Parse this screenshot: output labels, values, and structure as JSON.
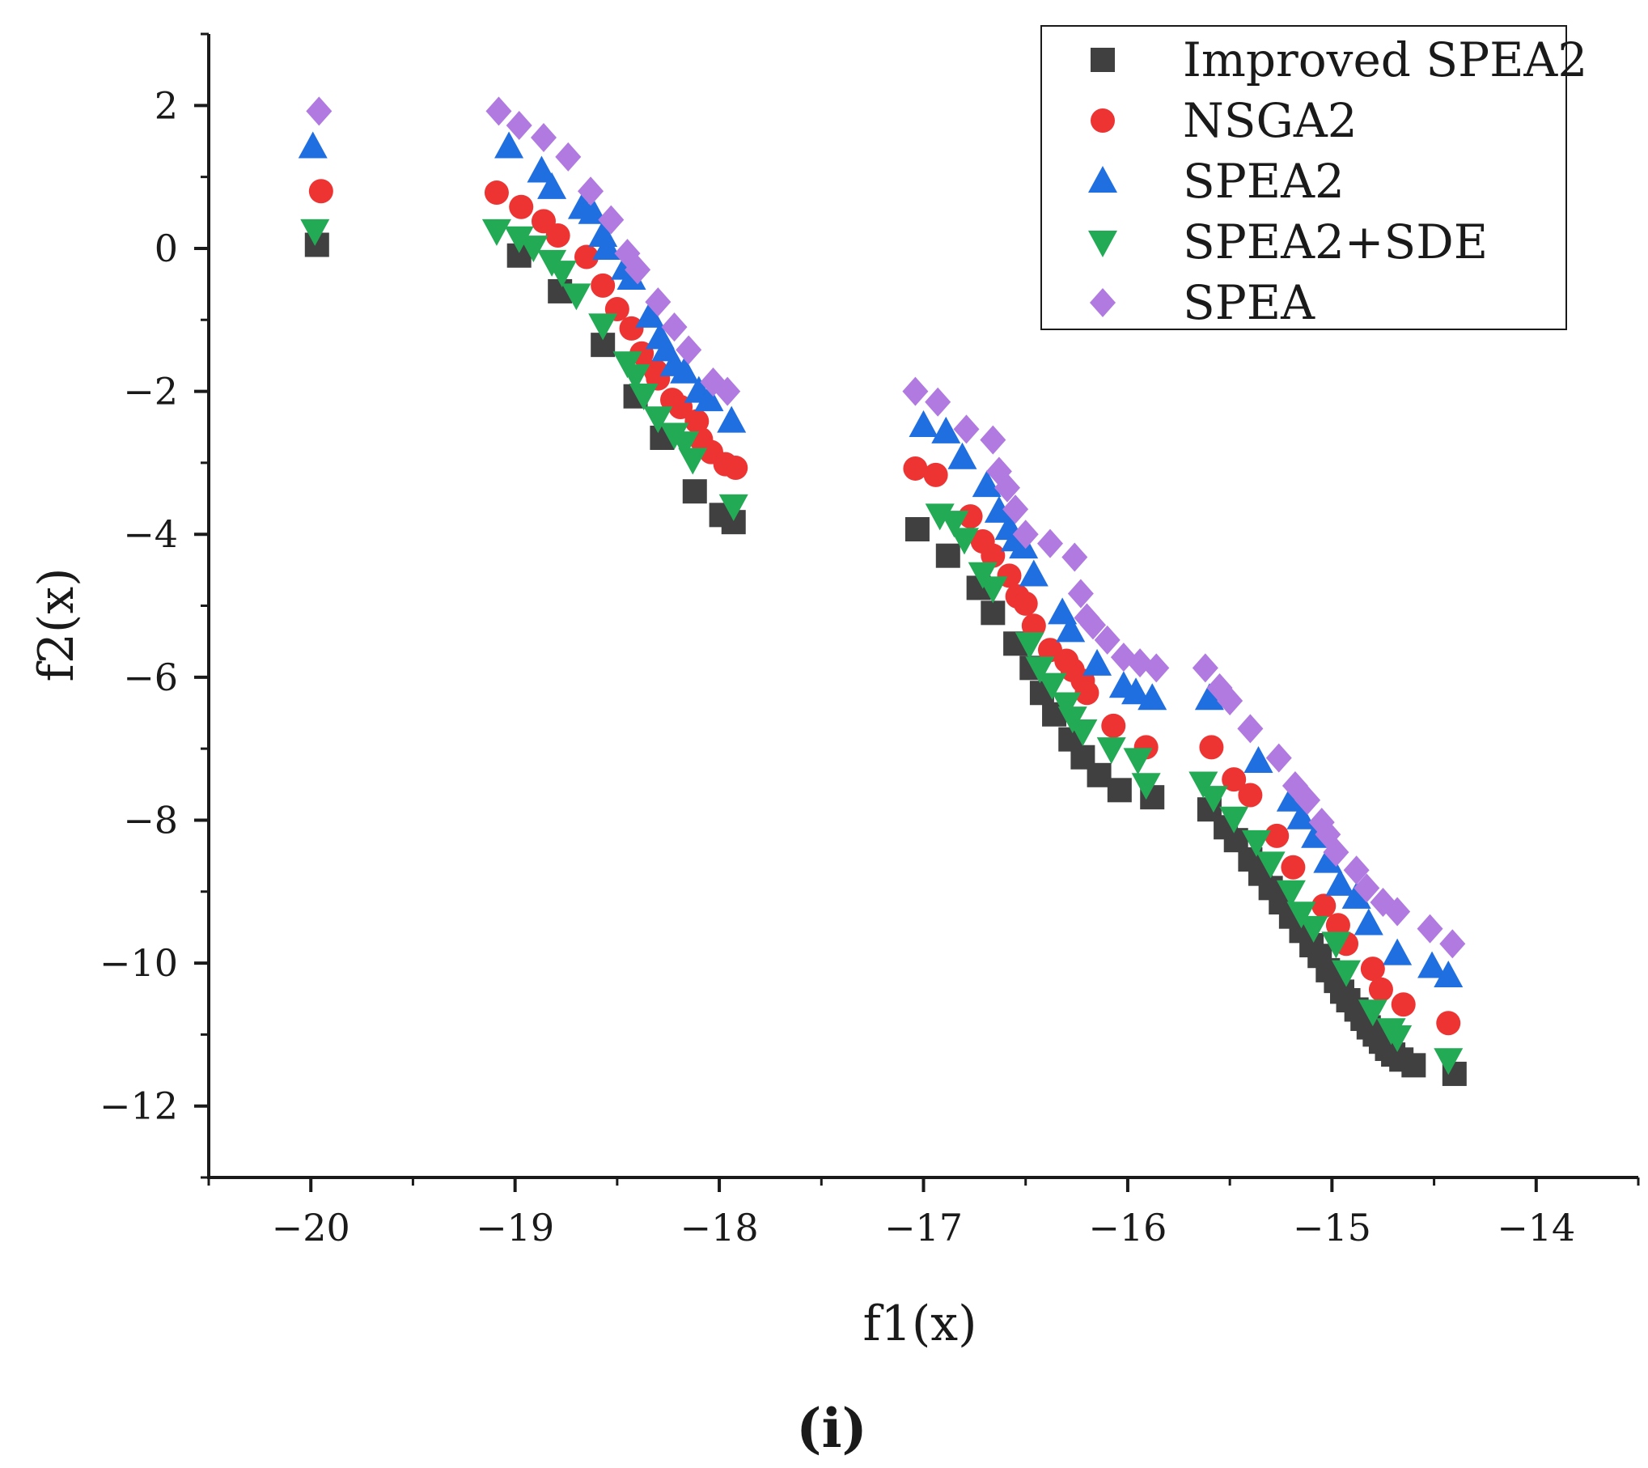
{
  "chart_data": {
    "type": "scatter",
    "title": "",
    "caption": "(i)",
    "xlabel": "f1(x)",
    "ylabel": "f2(x)",
    "xlim": [
      -20.5,
      -13.5
    ],
    "ylim": [
      -13,
      3
    ],
    "x_ticks": [
      -20,
      -19,
      -18,
      -17,
      -16,
      -15,
      -14
    ],
    "x_tick_labels": [
      "−20",
      "−19",
      "−18",
      "−17",
      "−16",
      "−15",
      "−14"
    ],
    "y_ticks": [
      2,
      0,
      -2,
      -4,
      -6,
      -8,
      -10,
      -12
    ],
    "y_tick_labels": [
      "2",
      "0",
      "−2",
      "−4",
      "−6",
      "−8",
      "−10",
      "−12"
    ],
    "grid": false,
    "legend_position": "top-right",
    "series": [
      {
        "name": "Improved SPEA2",
        "marker": "square",
        "color": "#404040",
        "points": [
          [
            -19.97,
            0.05
          ],
          [
            -18.98,
            -0.1
          ],
          [
            -18.78,
            -0.6
          ],
          [
            -18.57,
            -1.35
          ],
          [
            -18.41,
            -2.07
          ],
          [
            -18.28,
            -2.65
          ],
          [
            -18.12,
            -3.4
          ],
          [
            -17.99,
            -3.73
          ],
          [
            -17.93,
            -3.83
          ],
          [
            -17.03,
            -3.93
          ],
          [
            -16.88,
            -4.3
          ],
          [
            -16.73,
            -4.75
          ],
          [
            -16.66,
            -5.1
          ],
          [
            -16.55,
            -5.53
          ],
          [
            -16.47,
            -5.87
          ],
          [
            -16.42,
            -6.22
          ],
          [
            -16.36,
            -6.52
          ],
          [
            -16.28,
            -6.87
          ],
          [
            -16.22,
            -7.12
          ],
          [
            -16.14,
            -7.37
          ],
          [
            -16.04,
            -7.58
          ],
          [
            -15.88,
            -7.68
          ],
          [
            -15.6,
            -7.85
          ],
          [
            -15.52,
            -8.1
          ],
          [
            -15.47,
            -8.28
          ],
          [
            -15.4,
            -8.55
          ],
          [
            -15.35,
            -8.75
          ],
          [
            -15.3,
            -8.95
          ],
          [
            -15.25,
            -9.15
          ],
          [
            -15.2,
            -9.35
          ],
          [
            -15.15,
            -9.55
          ],
          [
            -15.1,
            -9.75
          ],
          [
            -15.06,
            -9.9
          ],
          [
            -15.02,
            -10.1
          ],
          [
            -14.98,
            -10.25
          ],
          [
            -14.95,
            -10.4
          ],
          [
            -14.92,
            -10.52
          ],
          [
            -14.88,
            -10.65
          ],
          [
            -14.85,
            -10.78
          ],
          [
            -14.82,
            -10.9
          ],
          [
            -14.79,
            -11.0
          ],
          [
            -14.76,
            -11.1
          ],
          [
            -14.73,
            -11.2
          ],
          [
            -14.7,
            -11.28
          ],
          [
            -14.66,
            -11.35
          ],
          [
            -14.6,
            -11.43
          ],
          [
            -14.4,
            -11.55
          ]
        ]
      },
      {
        "name": "NSGA2",
        "marker": "circle",
        "color": "#ee3333",
        "points": [
          [
            -19.95,
            0.8
          ],
          [
            -19.09,
            0.78
          ],
          [
            -18.97,
            0.58
          ],
          [
            -18.86,
            0.38
          ],
          [
            -18.79,
            0.18
          ],
          [
            -18.65,
            -0.12
          ],
          [
            -18.57,
            -0.52
          ],
          [
            -18.5,
            -0.85
          ],
          [
            -18.43,
            -1.12
          ],
          [
            -18.38,
            -1.47
          ],
          [
            -18.31,
            -1.72
          ],
          [
            -18.3,
            -1.82
          ],
          [
            -18.23,
            -2.12
          ],
          [
            -18.19,
            -2.22
          ],
          [
            -18.11,
            -2.42
          ],
          [
            -18.09,
            -2.67
          ],
          [
            -18.04,
            -2.85
          ],
          [
            -17.97,
            -3.02
          ],
          [
            -17.92,
            -3.07
          ],
          [
            -17.04,
            -3.08
          ],
          [
            -16.94,
            -3.17
          ],
          [
            -16.77,
            -3.75
          ],
          [
            -16.71,
            -4.1
          ],
          [
            -16.66,
            -4.3
          ],
          [
            -16.58,
            -4.58
          ],
          [
            -16.54,
            -4.87
          ],
          [
            -16.5,
            -4.97
          ],
          [
            -16.46,
            -5.28
          ],
          [
            -16.38,
            -5.62
          ],
          [
            -16.3,
            -5.77
          ],
          [
            -16.27,
            -5.9
          ],
          [
            -16.22,
            -6.05
          ],
          [
            -16.2,
            -6.22
          ],
          [
            -16.07,
            -6.68
          ],
          [
            -15.91,
            -6.98
          ],
          [
            -15.59,
            -6.98
          ],
          [
            -15.48,
            -7.43
          ],
          [
            -15.4,
            -7.65
          ],
          [
            -15.27,
            -8.22
          ],
          [
            -15.19,
            -8.66
          ],
          [
            -15.04,
            -9.2
          ],
          [
            -14.97,
            -9.47
          ],
          [
            -14.93,
            -9.73
          ],
          [
            -14.8,
            -10.08
          ],
          [
            -14.76,
            -10.37
          ],
          [
            -14.65,
            -10.58
          ],
          [
            -14.43,
            -10.84
          ]
        ]
      },
      {
        "name": "SPEA2",
        "marker": "triangle-up",
        "color": "#1f6fe0",
        "points": [
          [
            -19.99,
            1.42
          ],
          [
            -19.03,
            1.42
          ],
          [
            -18.87,
            1.08
          ],
          [
            -18.82,
            0.85
          ],
          [
            -18.67,
            0.57
          ],
          [
            -18.62,
            0.5
          ],
          [
            -18.57,
            0.18
          ],
          [
            -18.55,
            0.0
          ],
          [
            -18.46,
            -0.28
          ],
          [
            -18.43,
            -0.42
          ],
          [
            -18.34,
            -0.95
          ],
          [
            -18.29,
            -1.25
          ],
          [
            -18.26,
            -1.42
          ],
          [
            -18.22,
            -1.63
          ],
          [
            -18.17,
            -1.73
          ],
          [
            -18.1,
            -2.0
          ],
          [
            -18.05,
            -2.12
          ],
          [
            -17.94,
            -2.42
          ],
          [
            -17.0,
            -2.48
          ],
          [
            -16.89,
            -2.57
          ],
          [
            -16.81,
            -2.93
          ],
          [
            -16.69,
            -3.32
          ],
          [
            -16.63,
            -3.68
          ],
          [
            -16.58,
            -3.92
          ],
          [
            -16.55,
            -4.08
          ],
          [
            -16.51,
            -4.18
          ],
          [
            -16.46,
            -4.57
          ],
          [
            -16.32,
            -5.1
          ],
          [
            -16.28,
            -5.35
          ],
          [
            -16.15,
            -5.82
          ],
          [
            -16.02,
            -6.13
          ],
          [
            -15.96,
            -6.22
          ],
          [
            -15.88,
            -6.3
          ],
          [
            -15.6,
            -6.3
          ],
          [
            -15.36,
            -7.18
          ],
          [
            -15.2,
            -7.72
          ],
          [
            -15.15,
            -7.97
          ],
          [
            -15.08,
            -8.23
          ],
          [
            -15.02,
            -8.58
          ],
          [
            -14.96,
            -8.9
          ],
          [
            -14.88,
            -9.08
          ],
          [
            -14.82,
            -9.45
          ],
          [
            -14.68,
            -9.87
          ],
          [
            -14.51,
            -10.05
          ],
          [
            -14.43,
            -10.18
          ]
        ]
      },
      {
        "name": "SPEA2+SDE",
        "marker": "triangle-down",
        "color": "#22aa55",
        "points": [
          [
            -19.98,
            0.25
          ],
          [
            -19.09,
            0.25
          ],
          [
            -18.98,
            0.15
          ],
          [
            -18.91,
            0.02
          ],
          [
            -18.82,
            -0.18
          ],
          [
            -18.77,
            -0.33
          ],
          [
            -18.7,
            -0.65
          ],
          [
            -18.57,
            -1.07
          ],
          [
            -18.45,
            -1.6
          ],
          [
            -18.41,
            -1.78
          ],
          [
            -18.37,
            -2.05
          ],
          [
            -18.3,
            -2.37
          ],
          [
            -18.22,
            -2.6
          ],
          [
            -18.17,
            -2.72
          ],
          [
            -18.13,
            -2.95
          ],
          [
            -17.93,
            -3.6
          ],
          [
            -16.92,
            -3.73
          ],
          [
            -16.85,
            -3.83
          ],
          [
            -16.8,
            -4.07
          ],
          [
            -16.71,
            -4.55
          ],
          [
            -16.66,
            -4.75
          ],
          [
            -16.48,
            -5.53
          ],
          [
            -16.43,
            -5.87
          ],
          [
            -16.37,
            -6.1
          ],
          [
            -16.3,
            -6.37
          ],
          [
            -16.27,
            -6.57
          ],
          [
            -16.22,
            -6.75
          ],
          [
            -16.08,
            -7.0
          ],
          [
            -15.95,
            -7.15
          ],
          [
            -15.91,
            -7.5
          ],
          [
            -15.63,
            -7.48
          ],
          [
            -15.58,
            -7.68
          ],
          [
            -15.48,
            -7.97
          ],
          [
            -15.37,
            -8.3
          ],
          [
            -15.3,
            -8.6
          ],
          [
            -15.2,
            -9.0
          ],
          [
            -15.15,
            -9.3
          ],
          [
            -15.09,
            -9.5
          ],
          [
            -14.98,
            -9.72
          ],
          [
            -14.93,
            -10.12
          ],
          [
            -14.8,
            -10.67
          ],
          [
            -14.71,
            -10.93
          ],
          [
            -14.68,
            -11.03
          ],
          [
            -14.43,
            -11.35
          ]
        ]
      },
      {
        "name": "SPEA",
        "marker": "diamond",
        "color": "#b07ae0",
        "points": [
          [
            -19.96,
            1.92
          ],
          [
            -19.08,
            1.92
          ],
          [
            -18.98,
            1.72
          ],
          [
            -18.86,
            1.55
          ],
          [
            -18.74,
            1.28
          ],
          [
            -18.63,
            0.8
          ],
          [
            -18.53,
            0.4
          ],
          [
            -18.45,
            -0.07
          ],
          [
            -18.4,
            -0.3
          ],
          [
            -18.3,
            -0.75
          ],
          [
            -18.22,
            -1.1
          ],
          [
            -18.15,
            -1.42
          ],
          [
            -18.03,
            -1.87
          ],
          [
            -17.96,
            -2.0
          ],
          [
            -17.04,
            -2.0
          ],
          [
            -16.93,
            -2.15
          ],
          [
            -16.79,
            -2.53
          ],
          [
            -16.66,
            -2.68
          ],
          [
            -16.63,
            -3.12
          ],
          [
            -16.59,
            -3.35
          ],
          [
            -16.55,
            -3.65
          ],
          [
            -16.5,
            -4.0
          ],
          [
            -16.38,
            -4.13
          ],
          [
            -16.26,
            -4.32
          ],
          [
            -16.23,
            -4.83
          ],
          [
            -16.2,
            -5.17
          ],
          [
            -16.17,
            -5.27
          ],
          [
            -16.1,
            -5.48
          ],
          [
            -16.02,
            -5.72
          ],
          [
            -15.94,
            -5.8
          ],
          [
            -15.86,
            -5.87
          ],
          [
            -15.62,
            -5.87
          ],
          [
            -15.55,
            -6.15
          ],
          [
            -15.5,
            -6.33
          ],
          [
            -15.4,
            -6.72
          ],
          [
            -15.26,
            -7.13
          ],
          [
            -15.18,
            -7.52
          ],
          [
            -15.12,
            -7.72
          ],
          [
            -15.05,
            -8.03
          ],
          [
            -15.02,
            -8.2
          ],
          [
            -14.98,
            -8.45
          ],
          [
            -14.88,
            -8.7
          ],
          [
            -14.83,
            -8.95
          ],
          [
            -14.75,
            -9.15
          ],
          [
            -14.68,
            -9.28
          ],
          [
            -14.52,
            -9.52
          ],
          [
            -14.41,
            -9.73
          ]
        ]
      }
    ]
  }
}
